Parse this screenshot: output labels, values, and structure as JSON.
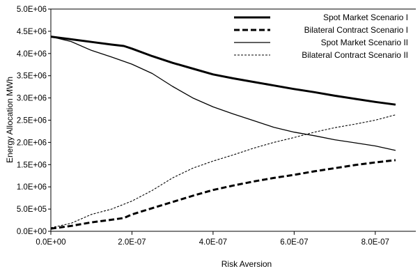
{
  "chart_data": {
    "type": "line",
    "xlabel": "Risk Aversion",
    "ylabel": "Energy Allocation MWh",
    "xlim": [
      0,
      9e-07
    ],
    "ylim": [
      0,
      5000000
    ],
    "x_ticks": [
      {
        "value": 0,
        "label": "0.0E+00"
      },
      {
        "value": 2e-07,
        "label": "2.0E-07"
      },
      {
        "value": 4e-07,
        "label": "4.0E-07"
      },
      {
        "value": 6e-07,
        "label": "6.0E-07"
      },
      {
        "value": 8e-07,
        "label": "8.0E-07"
      }
    ],
    "y_ticks": [
      {
        "value": 0,
        "label": "0.0E+00"
      },
      {
        "value": 500000,
        "label": "5.0E+05"
      },
      {
        "value": 1000000,
        "label": "1.0E+06"
      },
      {
        "value": 1500000,
        "label": "1.5E+06"
      },
      {
        "value": 2000000,
        "label": "2.0E+06"
      },
      {
        "value": 2500000,
        "label": "2.5E+06"
      },
      {
        "value": 3000000,
        "label": "3.0E+06"
      },
      {
        "value": 3500000,
        "label": "3.5E+06"
      },
      {
        "value": 4000000,
        "label": "4.0E+06"
      },
      {
        "value": 4500000,
        "label": "4.5E+06"
      },
      {
        "value": 5000000,
        "label": "5.0E+06"
      }
    ],
    "grid": false,
    "legend_position": "top-right",
    "series": [
      {
        "name": "Spot Market Scenario I",
        "style": "solid-thick",
        "color": "#000000",
        "x": [
          0,
          5e-08,
          1e-07,
          1.5e-07,
          1.8e-07,
          2e-07,
          2.5e-07,
          3e-07,
          3.5e-07,
          4e-07,
          4.5e-07,
          5e-07,
          5.5e-07,
          6e-07,
          6.5e-07,
          7e-07,
          7.5e-07,
          8e-07,
          8.5e-07
        ],
        "y": [
          4380000,
          4320000,
          4260000,
          4200000,
          4170000,
          4110000,
          3940000,
          3790000,
          3660000,
          3530000,
          3440000,
          3360000,
          3280000,
          3200000,
          3130000,
          3050000,
          2980000,
          2910000,
          2850000
        ]
      },
      {
        "name": "Bilateral Contract Scenario I",
        "style": "dashed-thick",
        "color": "#000000",
        "x": [
          0,
          5e-08,
          1e-07,
          1.5e-07,
          1.8e-07,
          2e-07,
          2.5e-07,
          3e-07,
          3.5e-07,
          4e-07,
          4.5e-07,
          5e-07,
          5.5e-07,
          6e-07,
          6.5e-07,
          7e-07,
          7.5e-07,
          8e-07,
          8.5e-07
        ],
        "y": [
          60000,
          120000,
          200000,
          260000,
          300000,
          380000,
          520000,
          660000,
          800000,
          930000,
          1030000,
          1120000,
          1200000,
          1270000,
          1350000,
          1420000,
          1490000,
          1550000,
          1600000
        ]
      },
      {
        "name": "Spot Market Scenario II",
        "style": "solid-thin",
        "color": "#000000",
        "x": [
          0,
          5e-08,
          1e-07,
          1.5e-07,
          2e-07,
          2.5e-07,
          3e-07,
          3.5e-07,
          4e-07,
          4.5e-07,
          5e-07,
          5.5e-07,
          6e-07,
          6.5e-07,
          7e-07,
          7.5e-07,
          8e-07,
          8.5e-07
        ],
        "y": [
          4380000,
          4270000,
          4070000,
          3920000,
          3760000,
          3550000,
          3260000,
          3000000,
          2800000,
          2640000,
          2490000,
          2340000,
          2230000,
          2150000,
          2060000,
          1990000,
          1920000,
          1820000
        ]
      },
      {
        "name": "Bilateral Contract Scenario II",
        "style": "dashed-thin",
        "color": "#000000",
        "x": [
          0,
          5e-08,
          1e-07,
          1.5e-07,
          2e-07,
          2.5e-07,
          3e-07,
          3.5e-07,
          4e-07,
          4.5e-07,
          5e-07,
          5.5e-07,
          6e-07,
          6.5e-07,
          7e-07,
          7.5e-07,
          8e-07,
          8.5e-07
        ],
        "y": [
          80000,
          180000,
          380000,
          500000,
          680000,
          920000,
          1200000,
          1420000,
          1580000,
          1720000,
          1870000,
          2000000,
          2110000,
          2230000,
          2330000,
          2410000,
          2500000,
          2620000
        ]
      }
    ]
  }
}
